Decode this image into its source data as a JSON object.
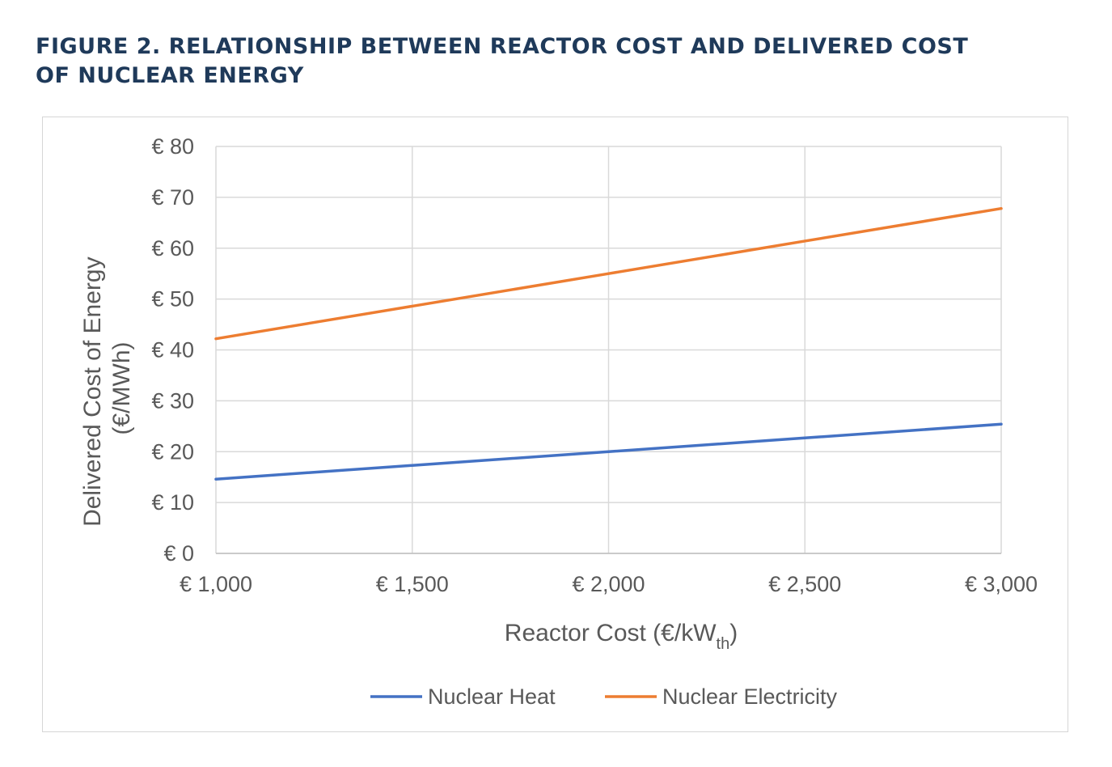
{
  "figure": {
    "title": "FIGURE 2. RELATIONSHIP BETWEEN REACTOR COST AND DELIVERED COST OF NUCLEAR ENERGY"
  },
  "chart_data": {
    "type": "line",
    "x": [
      1000,
      1500,
      2000,
      2500,
      3000
    ],
    "xtick_labels": [
      "€ 1,000",
      "€ 1,500",
      "€ 2,000",
      "€ 2,500",
      "€ 3,000"
    ],
    "ytick_values": [
      0,
      10,
      20,
      30,
      40,
      50,
      60,
      70,
      80
    ],
    "ytick_labels": [
      "€ 0",
      "€ 10",
      "€ 20",
      "€ 30",
      "€ 40",
      "€ 50",
      "€ 60",
      "€ 70",
      "€ 80"
    ],
    "xlabel_main": "Reactor Cost (€/kW",
    "xlabel_sub": "th",
    "xlabel_end": ")",
    "ylabel_line1": "Delivered Cost of Energy",
    "ylabel_line2": "(€/MWh)",
    "xlim": [
      1000,
      3000
    ],
    "ylim": [
      0,
      80
    ],
    "grid": true,
    "legend_position": "bottom",
    "series": [
      {
        "name": "Nuclear Heat",
        "color": "#4472c4",
        "values": [
          14.6,
          17.3,
          20.0,
          22.7,
          25.4
        ]
      },
      {
        "name": "Nuclear Electricity",
        "color": "#ed7d31",
        "values": [
          42.2,
          48.6,
          55.0,
          61.4,
          67.8
        ]
      }
    ]
  }
}
